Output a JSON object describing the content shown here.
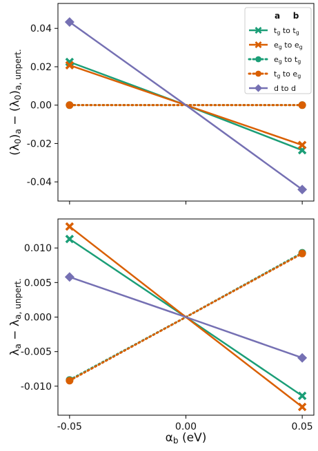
{
  "chart_data": [
    {
      "type": "line",
      "ylabel": "(λ0)a − (λ0)a, unpert.",
      "ylim": [
        -0.05,
        0.053
      ],
      "yticks": [
        "0.04",
        "0.02",
        "0.00",
        "-0.02",
        "-0.04"
      ],
      "ytick_values": [
        0.04,
        0.02,
        0.0,
        -0.02,
        -0.04
      ],
      "xlim": [
        -0.055,
        0.055
      ],
      "x": [
        -0.05,
        0.0,
        0.05
      ],
      "legend": {
        "placement": "top-right",
        "header": [
          "a",
          "b"
        ],
        "entries": [
          {
            "a": "t",
            "a_sub": "g",
            "b": "t",
            "b_sub": "g",
            "text": "tg to tg"
          },
          {
            "a": "e",
            "a_sub": "g",
            "b": "e",
            "b_sub": "g",
            "text": "eg to eg"
          },
          {
            "a": "e",
            "a_sub": "g",
            "b": "t",
            "b_sub": "g",
            "text": "eg to tg"
          },
          {
            "a": "t",
            "a_sub": "g",
            "b": "e",
            "b_sub": "g",
            "text": "tg to eg"
          },
          {
            "a": "d",
            "a_sub": "",
            "b": "d",
            "b_sub": "",
            "text": "d to d"
          }
        ]
      },
      "series": [
        {
          "key": "tg_tg",
          "color": "#1b9e77",
          "style": "solid",
          "marker": "x",
          "values": [
            0.0225,
            0.0,
            -0.0235
          ]
        },
        {
          "key": "eg_eg",
          "color": "#d95f02",
          "style": "solid",
          "marker": "x",
          "values": [
            0.0208,
            0.0,
            -0.0208
          ]
        },
        {
          "key": "eg_tg",
          "color": "#1b9e77",
          "style": "dotted",
          "marker": "o",
          "values": [
            0.0,
            0.0,
            0.0
          ]
        },
        {
          "key": "tg_eg",
          "color": "#d95f02",
          "style": "dotted",
          "marker": "o",
          "values": [
            0.0,
            0.0,
            0.0
          ]
        },
        {
          "key": "d_d",
          "color": "#7570b3",
          "style": "solid",
          "marker": "D",
          "values": [
            0.0433,
            0.0,
            -0.044
          ]
        }
      ]
    },
    {
      "type": "line",
      "ylabel": "λa − λa, unpert.",
      "xlabel": "αb (eV)",
      "ylim": [
        -0.0142,
        0.0142
      ],
      "yticks": [
        "0.010",
        "0.005",
        "0.000",
        "-0.005",
        "-0.010"
      ],
      "ytick_values": [
        0.01,
        0.005,
        0.0,
        -0.005,
        -0.01
      ],
      "xlim": [
        -0.055,
        0.055
      ],
      "xticks": [
        "-0.05",
        "0.00",
        "0.05"
      ],
      "xtick_values": [
        -0.05,
        0.0,
        0.05
      ],
      "x": [
        -0.05,
        0.0,
        0.05
      ],
      "series": [
        {
          "key": "tg_tg",
          "color": "#1b9e77",
          "style": "solid",
          "marker": "x",
          "values": [
            0.0113,
            0.0,
            -0.0114
          ]
        },
        {
          "key": "eg_eg",
          "color": "#d95f02",
          "style": "solid",
          "marker": "x",
          "values": [
            0.0131,
            0.0,
            -0.013
          ]
        },
        {
          "key": "eg_tg",
          "color": "#1b9e77",
          "style": "dotted",
          "marker": "o",
          "values": [
            -0.0091,
            0.0,
            0.0093
          ]
        },
        {
          "key": "tg_eg",
          "color": "#d95f02",
          "style": "dotted",
          "marker": "o",
          "values": [
            -0.0092,
            0.0,
            0.0092
          ]
        },
        {
          "key": "d_d",
          "color": "#7570b3",
          "style": "solid",
          "marker": "D",
          "values": [
            0.0058,
            0.0,
            -0.0059
          ]
        }
      ]
    }
  ]
}
